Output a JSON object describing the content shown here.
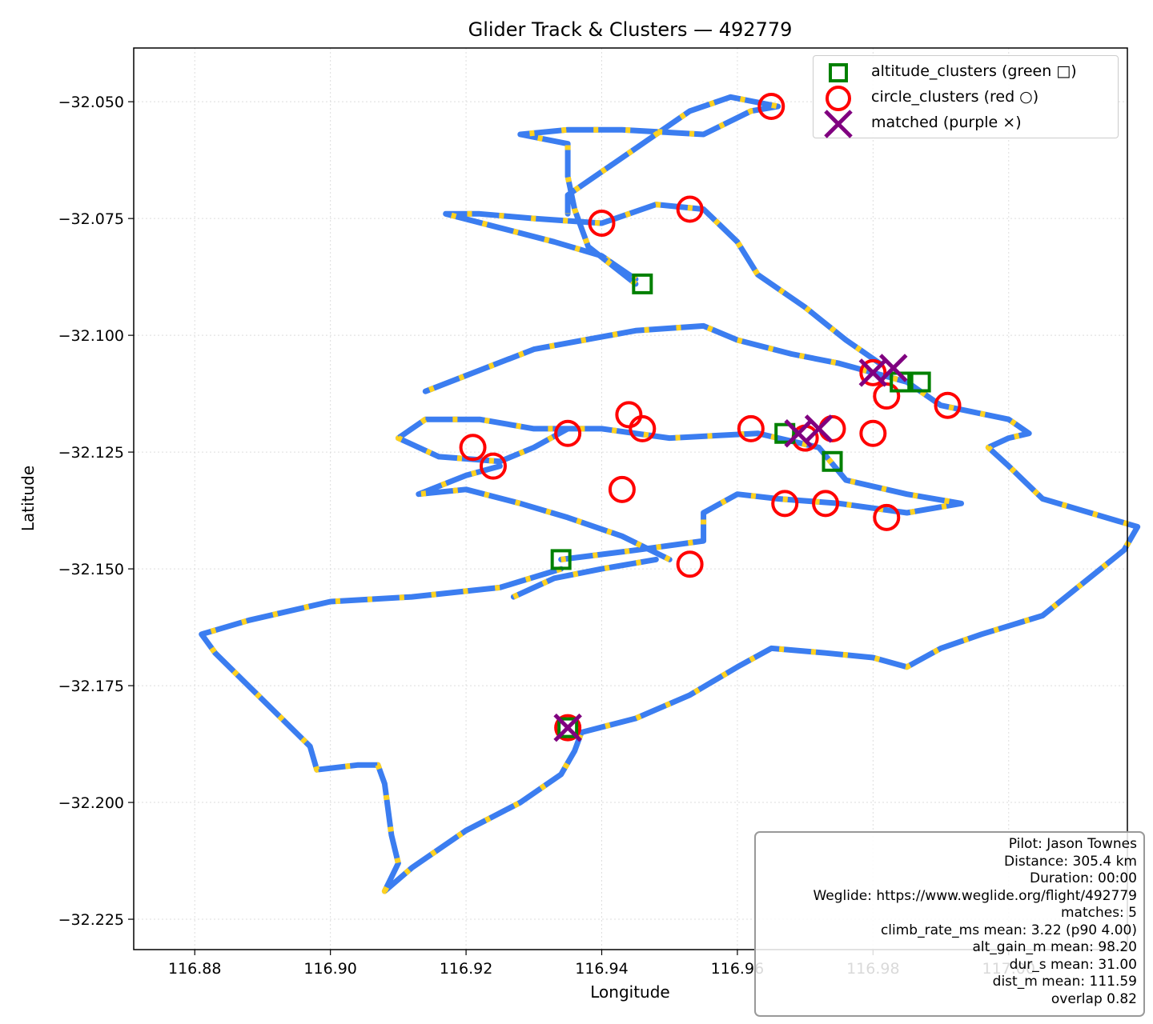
{
  "chart_data": {
    "type": "scatter",
    "title": "Glider Track & Clusters — 492779",
    "xlabel": "Longitude",
    "ylabel": "Latitude",
    "xlim": [
      116.871,
      117.0175
    ],
    "ylim": [
      -32.2315,
      -32.0385
    ],
    "xticks": [
      116.88,
      116.9,
      116.92,
      116.94,
      116.96,
      116.98,
      117.0
    ],
    "xtick_labels": [
      "116.88",
      "116.90",
      "116.92",
      "116.94",
      "116.96",
      "116.98",
      "117.00"
    ],
    "yticks": [
      -32.05,
      -32.075,
      -32.1,
      -32.125,
      -32.15,
      -32.175,
      -32.2,
      -32.225
    ],
    "ytick_labels": [
      "−32.050",
      "−32.075",
      "−32.100",
      "−32.125",
      "−32.150",
      "−32.175",
      "−32.200",
      "−32.225"
    ],
    "grid": true,
    "legend_position": "top-right",
    "track_colors": {
      "cruise": "#3b7df0",
      "climb": "#ffd21f"
    },
    "track": [
      [
        116.934,
        -32.15
      ],
      [
        116.925,
        -32.154
      ],
      [
        116.912,
        -32.156
      ],
      [
        116.9,
        -32.157
      ],
      [
        116.888,
        -32.161
      ],
      [
        116.881,
        -32.164
      ],
      [
        116.883,
        -32.168
      ],
      [
        116.89,
        -32.178
      ],
      [
        116.897,
        -32.188
      ],
      [
        116.898,
        -32.193
      ],
      [
        116.904,
        -32.192
      ],
      [
        116.907,
        -32.192
      ],
      [
        116.908,
        -32.196
      ],
      [
        116.909,
        -32.207
      ],
      [
        116.91,
        -32.213
      ],
      [
        116.908,
        -32.219
      ],
      [
        116.912,
        -32.214
      ],
      [
        116.92,
        -32.206
      ],
      [
        116.928,
        -32.2
      ],
      [
        116.934,
        -32.194
      ],
      [
        116.936,
        -32.189
      ],
      [
        116.937,
        -32.185
      ],
      [
        116.945,
        -32.182
      ],
      [
        116.953,
        -32.177
      ],
      [
        116.96,
        -32.171
      ],
      [
        116.965,
        -32.167
      ],
      [
        116.973,
        -32.168
      ],
      [
        116.98,
        -32.169
      ],
      [
        116.985,
        -32.171
      ],
      [
        116.99,
        -32.167
      ],
      [
        116.996,
        -32.164
      ],
      [
        117.005,
        -32.16
      ],
      [
        117.011,
        -32.153
      ],
      [
        117.017,
        -32.146
      ],
      [
        117.019,
        -32.141
      ],
      [
        117.012,
        -32.138
      ],
      [
        117.005,
        -32.135
      ],
      [
        117.0,
        -32.128
      ],
      [
        116.997,
        -32.124
      ],
      [
        117.0,
        -32.122
      ],
      [
        117.003,
        -32.121
      ],
      [
        117.0,
        -32.118
      ],
      [
        116.99,
        -32.115
      ],
      [
        116.985,
        -32.11
      ],
      [
        116.975,
        -32.106
      ],
      [
        116.968,
        -32.104
      ],
      [
        116.96,
        -32.101
      ],
      [
        116.955,
        -32.098
      ],
      [
        116.945,
        -32.099
      ],
      [
        116.93,
        -32.103
      ],
      [
        116.914,
        -32.112
      ]
    ],
    "track2": [
      [
        116.945,
        -32.088
      ],
      [
        116.94,
        -32.083
      ],
      [
        116.933,
        -32.08
      ],
      [
        116.925,
        -32.077
      ],
      [
        116.917,
        -32.074
      ],
      [
        116.922,
        -32.074
      ],
      [
        116.93,
        -32.075
      ],
      [
        116.94,
        -32.076
      ],
      [
        116.948,
        -32.072
      ],
      [
        116.955,
        -32.073
      ],
      [
        116.96,
        -32.08
      ],
      [
        116.963,
        -32.087
      ],
      [
        116.97,
        -32.094
      ],
      [
        116.976,
        -32.101
      ],
      [
        116.981,
        -32.106
      ]
    ],
    "track3": [
      [
        116.945,
        -32.089
      ],
      [
        116.938,
        -32.081
      ],
      [
        116.936,
        -32.073
      ],
      [
        116.935,
        -32.066
      ],
      [
        116.935,
        -32.059
      ],
      [
        116.928,
        -32.057
      ],
      [
        116.935,
        -32.056
      ],
      [
        116.943,
        -32.056
      ],
      [
        116.955,
        -32.057
      ],
      [
        116.962,
        -32.052
      ],
      [
        116.966,
        -32.051
      ],
      [
        116.959,
        -32.049
      ],
      [
        116.953,
        -32.052
      ],
      [
        116.945,
        -32.06
      ],
      [
        116.935,
        -32.07
      ],
      [
        116.935,
        -32.074
      ]
    ],
    "track4": [
      [
        116.934,
        -32.148
      ],
      [
        116.945,
        -32.146
      ],
      [
        116.955,
        -32.144
      ],
      [
        116.955,
        -32.138
      ],
      [
        116.96,
        -32.134
      ],
      [
        116.966,
        -32.135
      ],
      [
        116.975,
        -32.136
      ],
      [
        116.985,
        -32.138
      ],
      [
        116.993,
        -32.136
      ],
      [
        116.985,
        -32.134
      ],
      [
        116.976,
        -32.131
      ],
      [
        116.972,
        -32.124
      ],
      [
        116.963,
        -32.121
      ],
      [
        116.95,
        -32.122
      ],
      [
        116.94,
        -32.12
      ],
      [
        116.93,
        -32.12
      ],
      [
        116.922,
        -32.118
      ],
      [
        116.914,
        -32.118
      ],
      [
        116.91,
        -32.122
      ],
      [
        116.916,
        -32.126
      ],
      [
        116.925,
        -32.127
      ],
      [
        116.93,
        -32.124
      ],
      [
        116.935,
        -32.12
      ]
    ],
    "track5": [
      [
        116.95,
        -32.148
      ],
      [
        116.943,
        -32.143
      ],
      [
        116.935,
        -32.139
      ],
      [
        116.928,
        -32.136
      ],
      [
        116.92,
        -32.133
      ],
      [
        116.913,
        -32.134
      ],
      [
        116.92,
        -32.13
      ],
      [
        116.925,
        -32.128
      ]
    ],
    "track6": [
      [
        116.927,
        -32.156
      ],
      [
        116.933,
        -32.152
      ],
      [
        116.94,
        -32.15
      ],
      [
        116.948,
        -32.148
      ]
    ],
    "altitude_clusters": [
      [
        116.946,
        -32.089
      ],
      [
        116.934,
        -32.148
      ],
      [
        116.967,
        -32.121
      ],
      [
        116.974,
        -32.127
      ],
      [
        116.984,
        -32.11
      ],
      [
        116.987,
        -32.11
      ],
      [
        116.935,
        -32.184
      ]
    ],
    "circle_clusters": [
      [
        116.965,
        -32.051
      ],
      [
        116.94,
        -32.076
      ],
      [
        116.953,
        -32.073
      ],
      [
        116.98,
        -32.108
      ],
      [
        116.982,
        -32.113
      ],
      [
        116.991,
        -32.115
      ],
      [
        116.962,
        -32.12
      ],
      [
        116.97,
        -32.122
      ],
      [
        116.974,
        -32.12
      ],
      [
        116.98,
        -32.121
      ],
      [
        116.944,
        -32.117
      ],
      [
        116.946,
        -32.12
      ],
      [
        116.935,
        -32.121
      ],
      [
        116.921,
        -32.124
      ],
      [
        116.924,
        -32.128
      ],
      [
        116.943,
        -32.133
      ],
      [
        116.967,
        -32.136
      ],
      [
        116.973,
        -32.136
      ],
      [
        116.953,
        -32.149
      ],
      [
        116.935,
        -32.184
      ],
      [
        116.982,
        -32.139
      ]
    ],
    "matched": [
      [
        116.98,
        -32.108
      ],
      [
        116.983,
        -32.107
      ],
      [
        116.969,
        -32.121
      ],
      [
        116.972,
        -32.12
      ],
      [
        116.935,
        -32.184
      ]
    ],
    "legend": [
      {
        "label": "altitude_clusters (green □)",
        "color": "#008000",
        "marker": "square"
      },
      {
        "label": "circle_clusters (red ○)",
        "color": "#ff0000",
        "marker": "circle"
      },
      {
        "label": "matched (purple ×)",
        "color": "#800080",
        "marker": "x"
      }
    ]
  },
  "stats": [
    "Pilot: Jason Townes",
    "Distance: 305.4 km",
    "Duration: 00:00",
    "Weglide: https://www.weglide.org/flight/492779",
    "matches: 5",
    "climb_rate_ms mean: 3.22 (p90 4.00)",
    "alt_gain_m mean: 98.20",
    "dur_s mean: 31.00",
    "dist_m mean: 111.59",
    "overlap 0.82"
  ]
}
